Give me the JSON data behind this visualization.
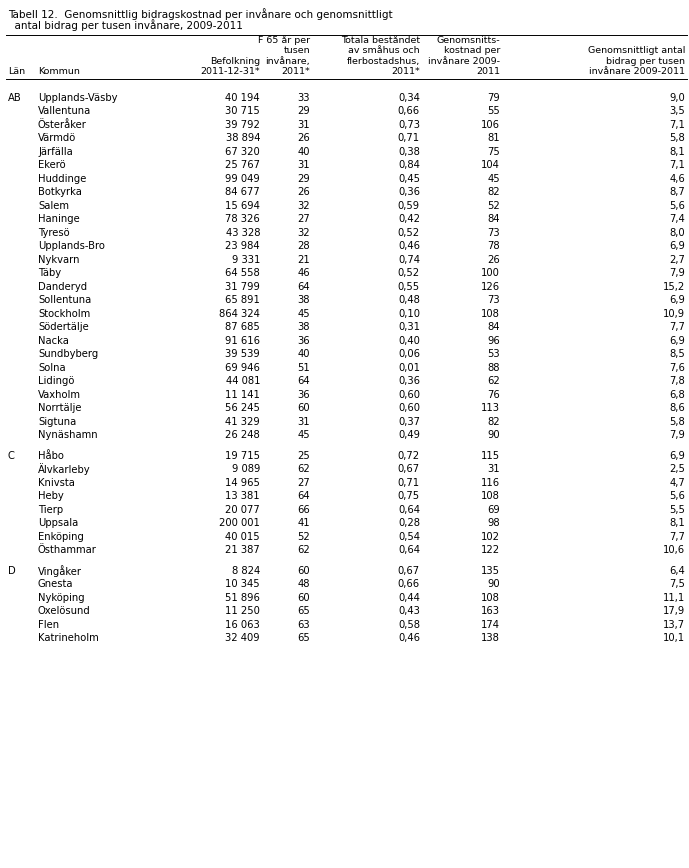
{
  "title": "Tabell 12.  Genomsnittlig bidragskostnad per invånare och genomsnittligt\n  antal bidrag per tusen invånare, 2009-2011",
  "col_headers": [
    "Län",
    "Kommun",
    "Befolkning\n2011-12-31*",
    "F 65 år per\ntusen\ninvånare,\n2011*",
    "Totala beståndet\nav småhus och\nflerbostadshus,\n2011*",
    "Genomsnitts-\nkostnad per\ninvånare 2009-\n2011",
    "Genomsnittligt antal\nbidrag per tusen\ninvånare 2009-2011"
  ],
  "rows": [
    [
      "AB",
      "Upplands-Väsby",
      "40 194",
      "33",
      "0,34",
      "79",
      "9,0"
    ],
    [
      "AB",
      "Vallentuna",
      "30 715",
      "29",
      "0,66",
      "55",
      "3,5"
    ],
    [
      "AB",
      "Österåker",
      "39 792",
      "31",
      "0,73",
      "106",
      "7,1"
    ],
    [
      "AB",
      "Värmdö",
      "38 894",
      "26",
      "0,71",
      "81",
      "5,8"
    ],
    [
      "AB",
      "Järfälla",
      "67 320",
      "40",
      "0,38",
      "75",
      "8,1"
    ],
    [
      "AB",
      "Ekerö",
      "25 767",
      "31",
      "0,84",
      "104",
      "7,1"
    ],
    [
      "AB",
      "Huddinge",
      "99 049",
      "29",
      "0,45",
      "45",
      "4,6"
    ],
    [
      "AB",
      "Botkyrka",
      "84 677",
      "26",
      "0,36",
      "82",
      "8,7"
    ],
    [
      "AB",
      "Salem",
      "15 694",
      "32",
      "0,59",
      "52",
      "5,6"
    ],
    [
      "AB",
      "Haninge",
      "78 326",
      "27",
      "0,42",
      "84",
      "7,4"
    ],
    [
      "AB",
      "Tyresö",
      "43 328",
      "32",
      "0,52",
      "73",
      "8,0"
    ],
    [
      "AB",
      "Upplands-Bro",
      "23 984",
      "28",
      "0,46",
      "78",
      "6,9"
    ],
    [
      "AB",
      "Nykvarn",
      "9 331",
      "21",
      "0,74",
      "26",
      "2,7"
    ],
    [
      "AB",
      "Täby",
      "64 558",
      "46",
      "0,52",
      "100",
      "7,9"
    ],
    [
      "AB",
      "Danderyd",
      "31 799",
      "64",
      "0,55",
      "126",
      "15,2"
    ],
    [
      "AB",
      "Sollentuna",
      "65 891",
      "38",
      "0,48",
      "73",
      "6,9"
    ],
    [
      "AB",
      "Stockholm",
      "864 324",
      "45",
      "0,10",
      "108",
      "10,9"
    ],
    [
      "AB",
      "Södertälje",
      "87 685",
      "38",
      "0,31",
      "84",
      "7,7"
    ],
    [
      "AB",
      "Nacka",
      "91 616",
      "36",
      "0,40",
      "96",
      "6,9"
    ],
    [
      "AB",
      "Sundbyberg",
      "39 539",
      "40",
      "0,06",
      "53",
      "8,5"
    ],
    [
      "AB",
      "Solna",
      "69 946",
      "51",
      "0,01",
      "88",
      "7,6"
    ],
    [
      "AB",
      "Lidingö",
      "44 081",
      "64",
      "0,36",
      "62",
      "7,8"
    ],
    [
      "AB",
      "Vaxholm",
      "11 141",
      "36",
      "0,60",
      "76",
      "6,8"
    ],
    [
      "AB",
      "Norrtälje",
      "56 245",
      "60",
      "0,60",
      "113",
      "8,6"
    ],
    [
      "AB",
      "Sigtuna",
      "41 329",
      "31",
      "0,37",
      "82",
      "5,8"
    ],
    [
      "AB",
      "Nynäshamn",
      "26 248",
      "45",
      "0,49",
      "90",
      "7,9"
    ],
    [
      "C",
      "Håbo",
      "19 715",
      "25",
      "0,72",
      "115",
      "6,9"
    ],
    [
      "C",
      "Älvkarleby",
      "9 089",
      "62",
      "0,67",
      "31",
      "2,5"
    ],
    [
      "C",
      "Knivsta",
      "14 965",
      "27",
      "0,71",
      "116",
      "4,7"
    ],
    [
      "C",
      "Heby",
      "13 381",
      "64",
      "0,75",
      "108",
      "5,6"
    ],
    [
      "C",
      "Tierp",
      "20 077",
      "66",
      "0,64",
      "69",
      "5,5"
    ],
    [
      "C",
      "Uppsala",
      "200 001",
      "41",
      "0,28",
      "98",
      "8,1"
    ],
    [
      "C",
      "Enköping",
      "40 015",
      "52",
      "0,54",
      "102",
      "7,7"
    ],
    [
      "C",
      "Östhammar",
      "21 387",
      "62",
      "0,64",
      "122",
      "10,6"
    ],
    [
      "D",
      "Vingåker",
      "8 824",
      "60",
      "0,67",
      "135",
      "6,4"
    ],
    [
      "D",
      "Gnesta",
      "10 345",
      "48",
      "0,66",
      "90",
      "7,5"
    ],
    [
      "D",
      "Nyköping",
      "51 896",
      "60",
      "0,44",
      "108",
      "11,1"
    ],
    [
      "D",
      "Oxelösund",
      "11 250",
      "65",
      "0,43",
      "163",
      "17,9"
    ],
    [
      "D",
      "Flen",
      "16 063",
      "63",
      "0,58",
      "174",
      "13,7"
    ],
    [
      "D",
      "Katrineholm",
      "32 409",
      "65",
      "0,46",
      "138",
      "10,1"
    ]
  ],
  "col_aligns": [
    "left",
    "left",
    "right",
    "right",
    "right",
    "right",
    "right"
  ],
  "title_fontsize": 7.5,
  "header_fontsize": 6.8,
  "row_fontsize": 7.2,
  "background_color": "#ffffff",
  "text_color": "#000000",
  "line_color": "#000000"
}
